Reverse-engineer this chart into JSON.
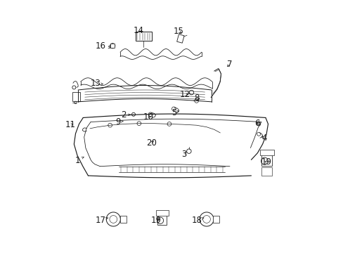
{
  "bg": "#ffffff",
  "lc": "#1a1a1a",
  "fig_w": 4.89,
  "fig_h": 3.6,
  "dpi": 100,
  "lw": 0.7,
  "labels": {
    "1": [
      0.125,
      0.365,
      0.152,
      0.38
    ],
    "2": [
      0.31,
      0.545,
      0.345,
      0.548
    ],
    "3": [
      0.548,
      0.39,
      0.565,
      0.402
    ],
    "4": [
      0.868,
      0.455,
      0.855,
      0.462
    ],
    "5": [
      0.51,
      0.555,
      0.53,
      0.562
    ],
    "6": [
      0.838,
      0.512,
      0.852,
      0.505
    ],
    "7": [
      0.728,
      0.748,
      0.715,
      0.73
    ],
    "8": [
      0.598,
      0.612,
      0.612,
      0.612
    ],
    "9": [
      0.288,
      0.518,
      0.308,
      0.522
    ],
    "10": [
      0.408,
      0.538,
      0.425,
      0.54
    ],
    "11": [
      0.098,
      0.508,
      0.118,
      0.51
    ],
    "12": [
      0.552,
      0.628,
      0.575,
      0.628
    ],
    "13": [
      0.198,
      0.672,
      0.228,
      0.668
    ],
    "14": [
      0.368,
      0.882,
      0.39,
      0.87
    ],
    "15": [
      0.528,
      0.878,
      0.545,
      0.865
    ],
    "16": [
      0.218,
      0.818,
      0.258,
      0.812
    ],
    "17": [
      0.218,
      0.128,
      0.248,
      0.138
    ],
    "18": [
      0.598,
      0.128,
      0.628,
      0.138
    ],
    "19a": [
      0.438,
      0.128,
      0.458,
      0.138
    ],
    "19b": [
      0.875,
      0.358,
      0.862,
      0.368
    ],
    "20": [
      0.418,
      0.435,
      0.435,
      0.448
    ]
  }
}
